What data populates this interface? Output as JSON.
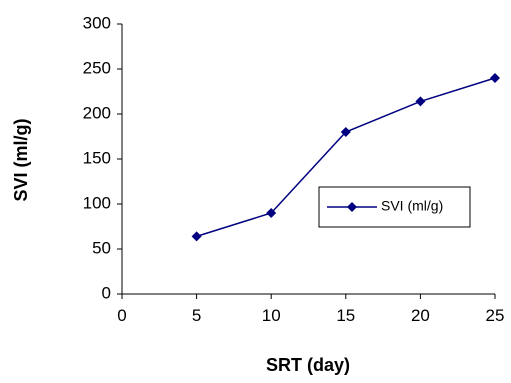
{
  "chart_data": {
    "type": "line",
    "title": "",
    "xlabel": "SRT (day)",
    "ylabel": "SVI (ml/g)",
    "xlim": [
      0,
      25
    ],
    "ylim": [
      0,
      300
    ],
    "xticks": [
      "0",
      "5",
      "10",
      "15",
      "20",
      "25"
    ],
    "yticks": [
      "0",
      "50",
      "100",
      "150",
      "200",
      "250",
      "300"
    ],
    "grid": false,
    "legend_position": "right",
    "series": [
      {
        "name": "SVI (ml/g)",
        "color": "#000080",
        "marker": "diamond",
        "x": [
          5,
          10,
          15,
          20,
          25
        ],
        "y": [
          64,
          90,
          180,
          214,
          240
        ]
      }
    ]
  }
}
